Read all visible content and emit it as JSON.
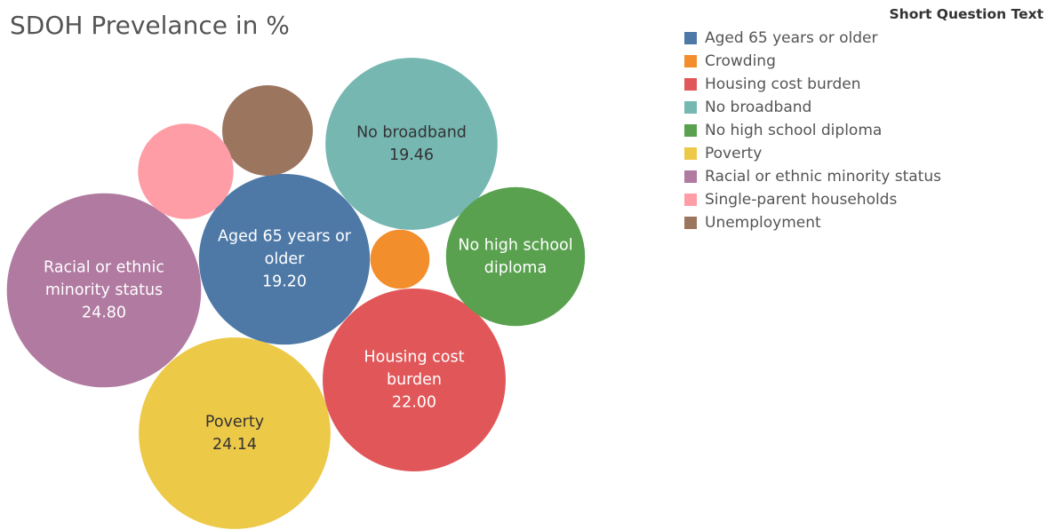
{
  "chart_data": {
    "type": "bubble",
    "title": "SDOH Prevelance in %",
    "legend": {
      "title": "Short Question Text",
      "placement": "top-right",
      "items": [
        {
          "label": "Aged 65 years or older",
          "color": "#4e79a7"
        },
        {
          "label": "Crowding",
          "color": "#f28e2b"
        },
        {
          "label": "Housing cost burden",
          "color": "#e15759"
        },
        {
          "label": "No broadband",
          "color": "#76b7b2"
        },
        {
          "label": "No high school diploma",
          "color": "#59a14f"
        },
        {
          "label": "Poverty",
          "color": "#edc948"
        },
        {
          "label": "Racial or ethnic minority status",
          "color": "#b07aa1"
        },
        {
          "label": "Single-parent households",
          "color": "#ff9da7"
        },
        {
          "label": "Unemployment",
          "color": "#9c755f"
        }
      ]
    },
    "bubbles": [
      {
        "category": "Racial or ethnic minority status",
        "label_lines": [
          "Racial or ethnic",
          "minority status"
        ],
        "value": 24.8,
        "value_label": "24.80",
        "color": "#b07aa1",
        "text_color": "#ffffff"
      },
      {
        "category": "Poverty",
        "label_lines": [
          "Poverty"
        ],
        "value": 24.14,
        "value_label": "24.14",
        "color": "#edc948",
        "text_color": "#333333"
      },
      {
        "category": "Housing cost burden",
        "label_lines": [
          "Housing cost",
          "burden"
        ],
        "value": 22.0,
        "value_label": "22.00",
        "color": "#e15759",
        "text_color": "#ffffff"
      },
      {
        "category": "No broadband",
        "label_lines": [
          "No broadband"
        ],
        "value": 19.46,
        "value_label": "19.46",
        "color": "#76b7b2",
        "text_color": "#333333"
      },
      {
        "category": "Aged 65 years or older",
        "label_lines": [
          "Aged 65 years or",
          "older"
        ],
        "value": 19.2,
        "value_label": "19.20",
        "color": "#4e79a7",
        "text_color": "#ffffff"
      },
      {
        "category": "No high school diploma",
        "label_lines": [
          "No high school",
          "diploma"
        ],
        "value": 12.7,
        "value_label": "",
        "color": "#59a14f",
        "text_color": "#ffffff"
      },
      {
        "category": "Unemployment",
        "label_lines": [],
        "value": 5.4,
        "value_label": "",
        "color": "#9c755f",
        "text_color": "#ffffff"
      },
      {
        "category": "Single-parent households",
        "label_lines": [],
        "value": 6.0,
        "value_label": "",
        "color": "#ff9da7",
        "text_color": "#ffffff"
      },
      {
        "category": "Crowding",
        "label_lines": [],
        "value": 2.3,
        "value_label": "",
        "color": "#f28e2b",
        "text_color": "#ffffff"
      }
    ]
  }
}
